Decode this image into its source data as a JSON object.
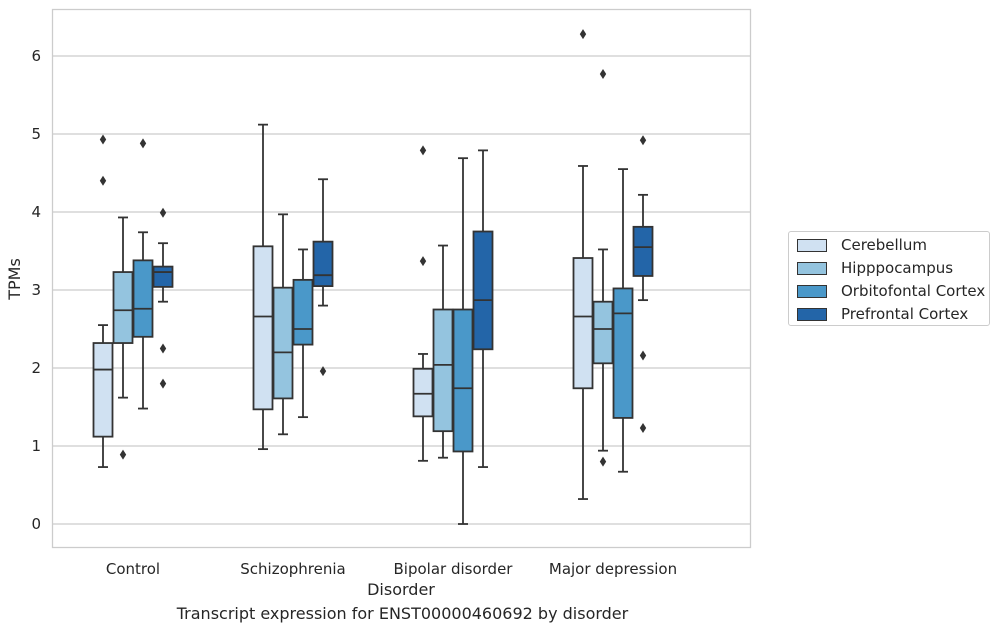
{
  "chart_data": {
    "type": "box",
    "title": "Transcript expression for ENST00000460692 by disorder",
    "xlabel": "Disorder",
    "ylabel": "TPMs",
    "ylim": [
      -0.3,
      6.6
    ],
    "yticks": [
      0,
      1,
      2,
      3,
      4,
      5,
      6
    ],
    "grid": "horizontal",
    "legend_position": "right, outside",
    "categories": [
      "Control",
      "Schizophrenia",
      "Bipolar disorder",
      "Major depression"
    ],
    "series": [
      {
        "name": "Cerebellum",
        "color": "#d0e1f2",
        "boxes": [
          {
            "whisker_low": 0.73,
            "q1": 1.12,
            "median": 1.98,
            "q3": 2.32,
            "whisker_high": 2.55,
            "outliers": [
              4.93,
              4.4
            ]
          },
          {
            "whisker_low": 0.96,
            "q1": 1.47,
            "median": 2.66,
            "q3": 3.56,
            "whisker_high": 5.12,
            "outliers": []
          },
          {
            "whisker_low": 0.81,
            "q1": 1.38,
            "median": 1.67,
            "q3": 1.99,
            "whisker_high": 2.18,
            "outliers": [
              3.37,
              4.79
            ]
          },
          {
            "whisker_low": 0.32,
            "q1": 1.74,
            "median": 2.66,
            "q3": 3.41,
            "whisker_high": 4.59,
            "outliers": [
              6.28
            ]
          }
        ]
      },
      {
        "name": "Hipppocampus",
        "color": "#94c4df",
        "boxes": [
          {
            "whisker_low": 1.62,
            "q1": 2.32,
            "median": 2.74,
            "q3": 3.23,
            "whisker_high": 3.93,
            "outliers": [
              0.89
            ]
          },
          {
            "whisker_low": 1.15,
            "q1": 1.61,
            "median": 2.2,
            "q3": 3.03,
            "whisker_high": 3.97,
            "outliers": []
          },
          {
            "whisker_low": 0.85,
            "q1": 1.19,
            "median": 2.04,
            "q3": 2.75,
            "whisker_high": 3.57,
            "outliers": []
          },
          {
            "whisker_low": 0.94,
            "q1": 2.06,
            "median": 2.5,
            "q3": 2.85,
            "whisker_high": 3.52,
            "outliers": [
              0.8,
              5.77
            ]
          }
        ]
      },
      {
        "name": "Orbitofontal Cortex",
        "color": "#4a98c9",
        "boxes": [
          {
            "whisker_low": 1.48,
            "q1": 2.4,
            "median": 2.76,
            "q3": 3.38,
            "whisker_high": 3.74,
            "outliers": [
              4.88
            ]
          },
          {
            "whisker_low": 1.37,
            "q1": 2.3,
            "median": 2.5,
            "q3": 3.13,
            "whisker_high": 3.52,
            "outliers": []
          },
          {
            "whisker_low": 0.0,
            "q1": 0.93,
            "median": 1.74,
            "q3": 2.75,
            "whisker_high": 4.69,
            "outliers": []
          },
          {
            "whisker_low": 0.67,
            "q1": 1.36,
            "median": 2.7,
            "q3": 3.02,
            "whisker_high": 4.55,
            "outliers": []
          }
        ]
      },
      {
        "name": "Prefrontal Cortex",
        "color": "#2365a8",
        "boxes": [
          {
            "whisker_low": 2.85,
            "q1": 3.04,
            "median": 3.23,
            "q3": 3.3,
            "whisker_high": 3.6,
            "outliers": [
              3.99,
              2.25,
              1.8
            ]
          },
          {
            "whisker_low": 2.8,
            "q1": 3.05,
            "median": 3.19,
            "q3": 3.62,
            "whisker_high": 4.42,
            "outliers": [
              1.96
            ]
          },
          {
            "whisker_low": 0.73,
            "q1": 2.24,
            "median": 2.87,
            "q3": 3.75,
            "whisker_high": 4.79,
            "outliers": []
          },
          {
            "whisker_low": 2.87,
            "q1": 3.18,
            "median": 3.55,
            "q3": 3.81,
            "whisker_high": 4.22,
            "outliers": [
              4.92,
              2.16,
              1.23
            ]
          }
        ]
      }
    ]
  }
}
